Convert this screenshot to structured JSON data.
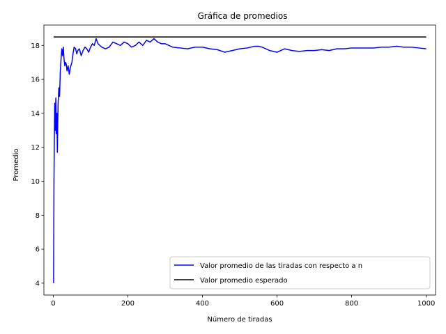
{
  "chart_data": {
    "type": "line",
    "title": "Gráfica de promedios",
    "xlabel": "Número de tiradas",
    "ylabel": "Promedio",
    "xlim": [
      -25,
      1025
    ],
    "ylim": [
      3.3,
      19.2
    ],
    "xticks": [
      0,
      200,
      400,
      600,
      800,
      1000
    ],
    "yticks": [
      4,
      6,
      8,
      10,
      12,
      14,
      16,
      18
    ],
    "grid": false,
    "legend_position": "lower-right",
    "series": [
      {
        "name": "Valor promedio de las tiradas con respecto a n",
        "color": "#0000ff",
        "x": [
          1,
          2,
          3,
          4,
          5,
          6,
          7,
          8,
          9,
          10,
          11,
          12,
          13,
          15,
          17,
          19,
          21,
          23,
          25,
          27,
          29,
          31,
          33,
          35,
          37,
          40,
          43,
          46,
          50,
          53,
          56,
          60,
          63,
          66,
          70,
          75,
          80,
          85,
          90,
          95,
          100,
          105,
          110,
          115,
          120,
          125,
          130,
          140,
          150,
          160,
          170,
          180,
          190,
          200,
          210,
          220,
          230,
          240,
          250,
          260,
          270,
          280,
          290,
          300,
          320,
          340,
          360,
          380,
          400,
          420,
          440,
          460,
          480,
          500,
          520,
          540,
          550,
          560,
          580,
          600,
          620,
          640,
          660,
          680,
          700,
          720,
          740,
          760,
          780,
          800,
          820,
          840,
          860,
          880,
          900,
          920,
          940,
          960,
          980,
          1000
        ],
        "y": [
          4.0,
          10.0,
          12.5,
          14.6,
          13.0,
          14.2,
          14.9,
          12.8,
          13.5,
          14.0,
          11.7,
          13.2,
          14.5,
          15.5,
          15.0,
          16.5,
          17.2,
          17.8,
          17.4,
          17.9,
          17.2,
          16.8,
          17.0,
          16.9,
          16.5,
          16.8,
          16.3,
          16.7,
          17.0,
          17.5,
          17.9,
          17.8,
          17.5,
          17.7,
          17.8,
          17.4,
          17.7,
          17.9,
          17.8,
          17.6,
          17.9,
          18.1,
          18.0,
          18.4,
          18.1,
          18.0,
          17.9,
          17.8,
          17.9,
          18.2,
          18.1,
          18.0,
          18.2,
          18.1,
          17.9,
          18.0,
          18.2,
          18.0,
          18.3,
          18.2,
          18.4,
          18.2,
          18.1,
          18.1,
          17.9,
          17.85,
          17.8,
          17.9,
          17.9,
          17.8,
          17.75,
          17.6,
          17.7,
          17.8,
          17.85,
          17.95,
          17.95,
          17.9,
          17.7,
          17.6,
          17.8,
          17.7,
          17.65,
          17.7,
          17.7,
          17.75,
          17.7,
          17.8,
          17.8,
          17.85,
          17.85,
          17.85,
          17.85,
          17.9,
          17.9,
          17.95,
          17.9,
          17.9,
          17.85,
          17.8
        ]
      },
      {
        "name": "Valor promedio esperado",
        "color": "#000000",
        "x": [
          1,
          1000
        ],
        "y": [
          18.5,
          18.5
        ]
      }
    ]
  }
}
